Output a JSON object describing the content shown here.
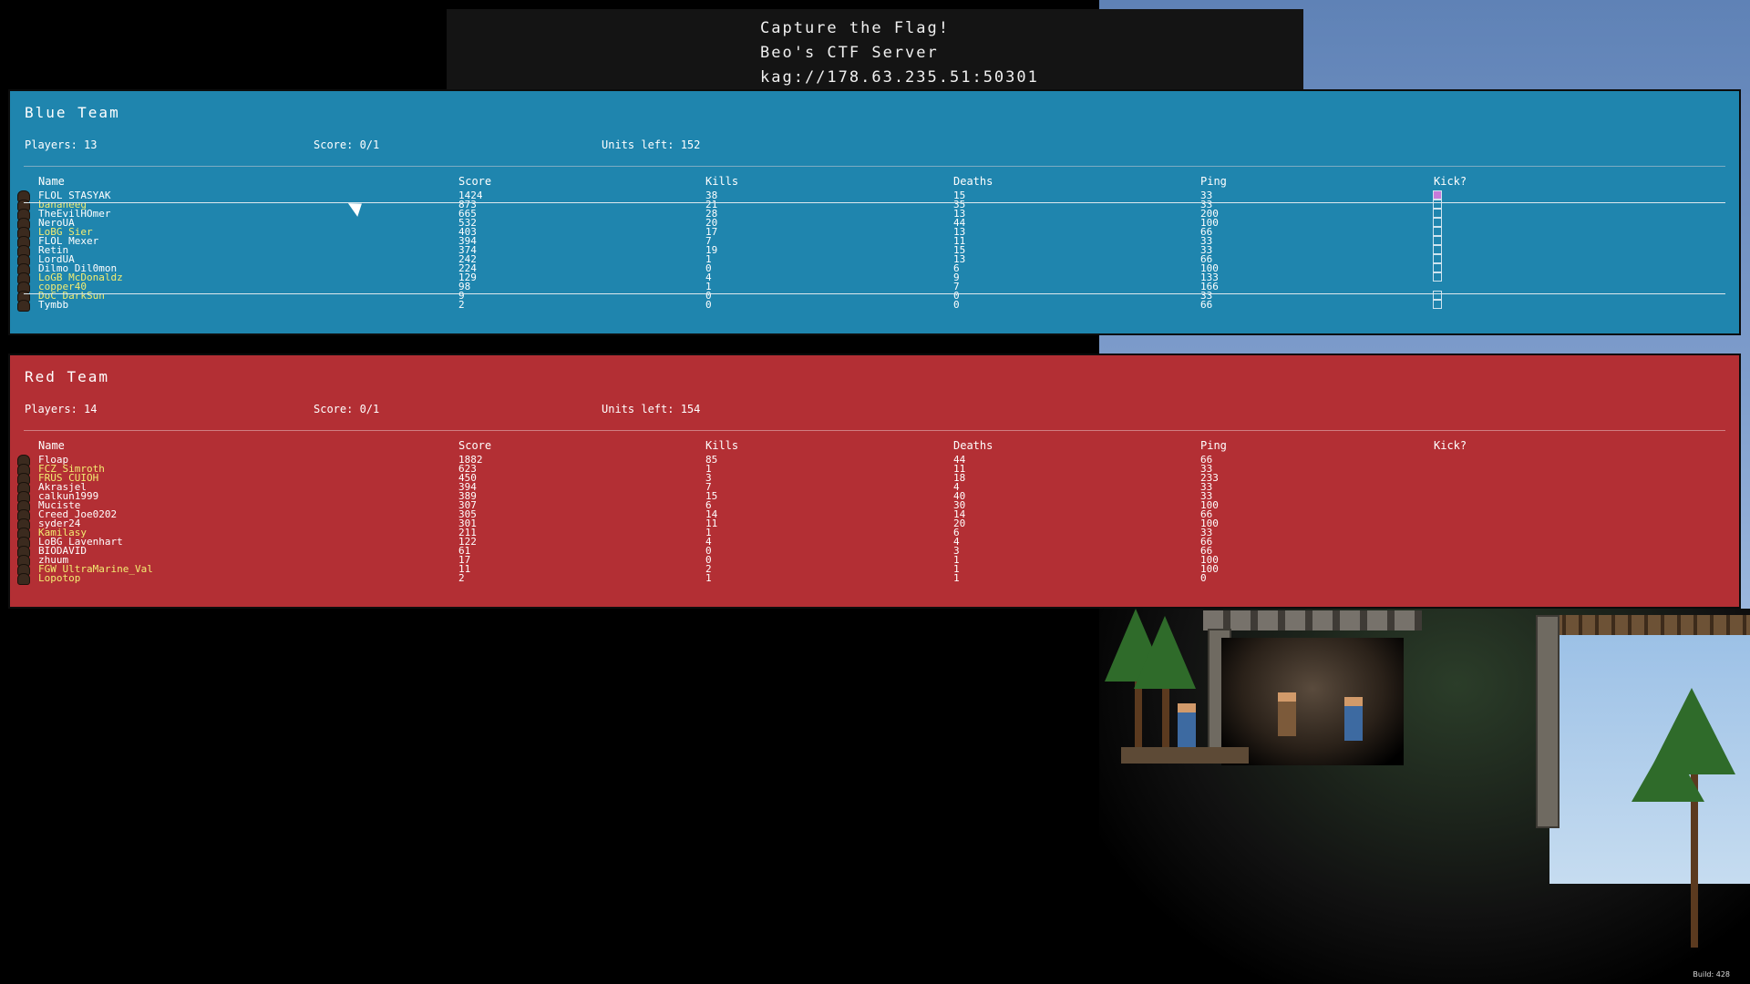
{
  "banner": {
    "title": "Capture the Flag!",
    "server_name": "Beo's CTF Server",
    "address": "kag://178.63.235.51:50301"
  },
  "columns": [
    "Name",
    "Score",
    "Kills",
    "Deaths",
    "Ping",
    "Kick?"
  ],
  "blue_team": {
    "title": "Blue Team",
    "players_label": "Players: 13",
    "score_label": "Score: 0/1",
    "units_label": "Units left: 152",
    "color": "#1f85ae",
    "rows": [
      {
        "name": "FLOL STASYAK",
        "score": "1424",
        "kills": "38",
        "deaths": "15",
        "ping": "33",
        "highlight": false,
        "kick": true,
        "kick_checked": true
      },
      {
        "name": "bananeeg",
        "score": "873",
        "kills": "21",
        "deaths": "35",
        "ping": "33",
        "highlight": true,
        "kick": true
      },
      {
        "name": "TheEvilHOmer",
        "score": "665",
        "kills": "28",
        "deaths": "13",
        "ping": "200",
        "highlight": false,
        "kick": true
      },
      {
        "name": "NeroUA",
        "score": "532",
        "kills": "20",
        "deaths": "44",
        "ping": "100",
        "highlight": false,
        "kick": true
      },
      {
        "name": "LoBG Sier",
        "score": "403",
        "kills": "17",
        "deaths": "13",
        "ping": "66",
        "highlight": true,
        "kick": true
      },
      {
        "name": "FLOL Mexer",
        "score": "394",
        "kills": "7",
        "deaths": "11",
        "ping": "33",
        "highlight": false,
        "kick": true
      },
      {
        "name": "Retin",
        "score": "374",
        "kills": "19",
        "deaths": "15",
        "ping": "33",
        "highlight": false,
        "kick": true
      },
      {
        "name": "LordUA",
        "score": "242",
        "kills": "1",
        "deaths": "13",
        "ping": "66",
        "highlight": false,
        "kick": true
      },
      {
        "name": "Dilmo Dil0mon",
        "score": "224",
        "kills": "0",
        "deaths": "6",
        "ping": "100",
        "highlight": false,
        "kick": true
      },
      {
        "name": "LoGB McDonaldz",
        "score": "129",
        "kills": "4",
        "deaths": "9",
        "ping": "133",
        "highlight": true,
        "kick": true
      },
      {
        "name": "copper40",
        "score": "98",
        "kills": "1",
        "deaths": "7",
        "ping": "166",
        "highlight": true,
        "kick": false
      },
      {
        "name": "DoC DarkSun",
        "score": "9",
        "kills": "0",
        "deaths": "0",
        "ping": "33",
        "highlight": true,
        "kick": true
      },
      {
        "name": "Tymbb",
        "score": "2",
        "kills": "0",
        "deaths": "0",
        "ping": "66",
        "highlight": false,
        "kick": true
      }
    ]
  },
  "red_team": {
    "title": "Red Team",
    "players_label": "Players: 14",
    "score_label": "Score: 0/1",
    "units_label": "Units left: 154",
    "color": "#b32f34",
    "rows": [
      {
        "name": "Floap",
        "score": "1882",
        "kills": "85",
        "deaths": "44",
        "ping": "66",
        "highlight": false
      },
      {
        "name": "FCZ Simroth",
        "score": "623",
        "kills": "1",
        "deaths": "11",
        "ping": "33",
        "highlight": true
      },
      {
        "name": "FRUS CUIOH",
        "score": "450",
        "kills": "3",
        "deaths": "18",
        "ping": "233",
        "highlight": true
      },
      {
        "name": "Akrasjel",
        "score": "394",
        "kills": "7",
        "deaths": "4",
        "ping": "33",
        "highlight": false
      },
      {
        "name": "calkun1999",
        "score": "389",
        "kills": "15",
        "deaths": "40",
        "ping": "33",
        "highlight": false
      },
      {
        "name": "Muciste",
        "score": "307",
        "kills": "6",
        "deaths": "30",
        "ping": "100",
        "highlight": false
      },
      {
        "name": "Creed Joe0202",
        "score": "305",
        "kills": "14",
        "deaths": "14",
        "ping": "66",
        "highlight": false
      },
      {
        "name": "syder24",
        "score": "301",
        "kills": "11",
        "deaths": "20",
        "ping": "100",
        "highlight": false
      },
      {
        "name": "Kamilasy",
        "score": "211",
        "kills": "1",
        "deaths": "6",
        "ping": "33",
        "highlight": true
      },
      {
        "name": "LoBG Lavenhart",
        "score": "122",
        "kills": "4",
        "deaths": "4",
        "ping": "66",
        "highlight": false
      },
      {
        "name": "BIODAVID",
        "score": "61",
        "kills": "0",
        "deaths": "3",
        "ping": "66",
        "highlight": false
      },
      {
        "name": "zhuum",
        "score": "17",
        "kills": "0",
        "deaths": "1",
        "ping": "100",
        "highlight": false
      },
      {
        "name": "FGW UltraMarine_Val",
        "score": "11",
        "kills": "2",
        "deaths": "1",
        "ping": "100",
        "highlight": true
      },
      {
        "name": "Lopotop",
        "score": "2",
        "kills": "1",
        "deaths": "1",
        "ping": "0",
        "highlight": true
      }
    ]
  },
  "footer": {
    "build": "Build: 428"
  }
}
